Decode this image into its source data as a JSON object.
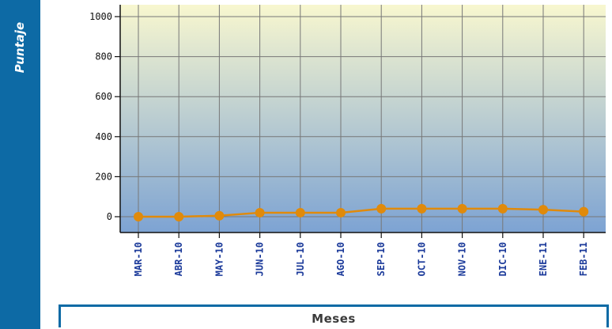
{
  "chart_data": {
    "type": "line",
    "ylabel": "Puntaje",
    "xlabel": "Meses",
    "categories": [
      "MAR-10",
      "ABR-10",
      "MAY-10",
      "JUN-10",
      "JUL-10",
      "AGO-10",
      "SEP-10",
      "OCT-10",
      "NOV-10",
      "DIC-10",
      "ENE-11",
      "FEB-11"
    ],
    "series": [
      {
        "values": [
          0,
          0,
          5,
          20,
          20,
          20,
          40,
          40,
          40,
          40,
          35,
          25
        ]
      }
    ],
    "ylim": [
      0,
      1000
    ],
    "yticks": [
      0,
      200,
      400,
      600,
      800,
      1000
    ],
    "grid": true,
    "colors": {
      "line": "#e08a0b",
      "marker": "#e08a0b",
      "grid": "#777777",
      "bg_top": "#f8f7cf",
      "bg_bottom": "#7da3d3",
      "accent": "#0d6aa5"
    }
  }
}
